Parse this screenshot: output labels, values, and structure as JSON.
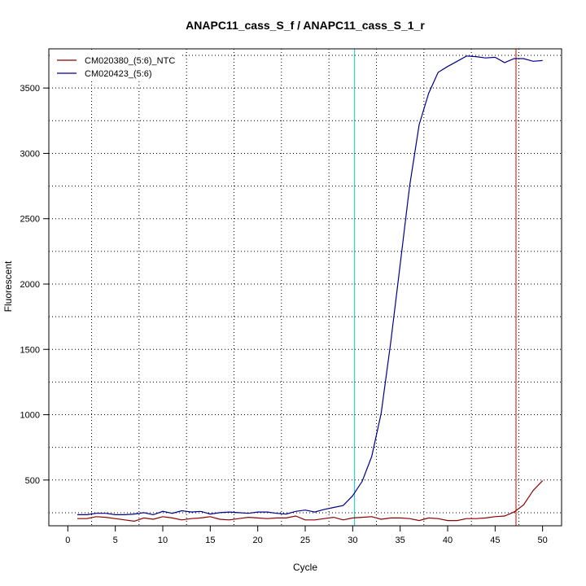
{
  "chart_data": {
    "type": "line",
    "title": "ANAPC11_cass_S_f / ANAPC11_cass_S_1_r",
    "xlabel": "Cycle",
    "ylabel": "Fluorescent",
    "xlim": [
      0,
      50
    ],
    "ylim": [
      150,
      3800
    ],
    "x_ticks": [
      0,
      5,
      10,
      15,
      20,
      25,
      30,
      35,
      40,
      45,
      50
    ],
    "y_ticks": [
      500,
      1000,
      1500,
      2000,
      2500,
      3000,
      3500
    ],
    "grid": true,
    "legend_position": "top-left",
    "threshold_lines": [
      {
        "x": 30.2,
        "color": "#00cccc"
      },
      {
        "x": 47.2,
        "color": "#cc0000"
      }
    ],
    "series": [
      {
        "name": "CM020380_(5:6)_NTC",
        "color": "#8b0000",
        "x": [
          1,
          2,
          3,
          4,
          5,
          6,
          7,
          8,
          9,
          10,
          11,
          12,
          13,
          14,
          15,
          16,
          17,
          18,
          19,
          20,
          21,
          22,
          23,
          24,
          25,
          26,
          27,
          28,
          29,
          30,
          31,
          32,
          33,
          34,
          35,
          36,
          37,
          38,
          39,
          40,
          41,
          42,
          43,
          44,
          45,
          46,
          47,
          48,
          49,
          50
        ],
        "y": [
          205,
          205,
          220,
          215,
          205,
          195,
          185,
          210,
          200,
          220,
          210,
          195,
          205,
          210,
          220,
          200,
          195,
          205,
          215,
          210,
          205,
          210,
          210,
          225,
          195,
          195,
          205,
          215,
          195,
          210,
          215,
          220,
          200,
          210,
          210,
          205,
          190,
          210,
          205,
          190,
          190,
          205,
          205,
          210,
          220,
          225,
          255,
          310,
          420,
          495
        ]
      },
      {
        "name": "CM020423_(5:6)",
        "color": "#00008b",
        "x": [
          1,
          2,
          3,
          4,
          5,
          6,
          7,
          8,
          9,
          10,
          11,
          12,
          13,
          14,
          15,
          16,
          17,
          18,
          19,
          20,
          21,
          22,
          23,
          24,
          25,
          26,
          27,
          28,
          29,
          30,
          31,
          32,
          33,
          34,
          35,
          36,
          37,
          38,
          39,
          40,
          41,
          42,
          43,
          44,
          45,
          46,
          47,
          48,
          49,
          50
        ],
        "y": [
          235,
          235,
          245,
          245,
          235,
          235,
          240,
          250,
          235,
          260,
          245,
          265,
          255,
          260,
          240,
          250,
          255,
          250,
          245,
          255,
          255,
          245,
          240,
          260,
          270,
          255,
          275,
          290,
          305,
          380,
          490,
          680,
          1010,
          1550,
          2150,
          2750,
          3220,
          3460,
          3620,
          3665,
          3705,
          3745,
          3740,
          3730,
          3735,
          3695,
          3725,
          3725,
          3705,
          3710
        ]
      }
    ]
  }
}
